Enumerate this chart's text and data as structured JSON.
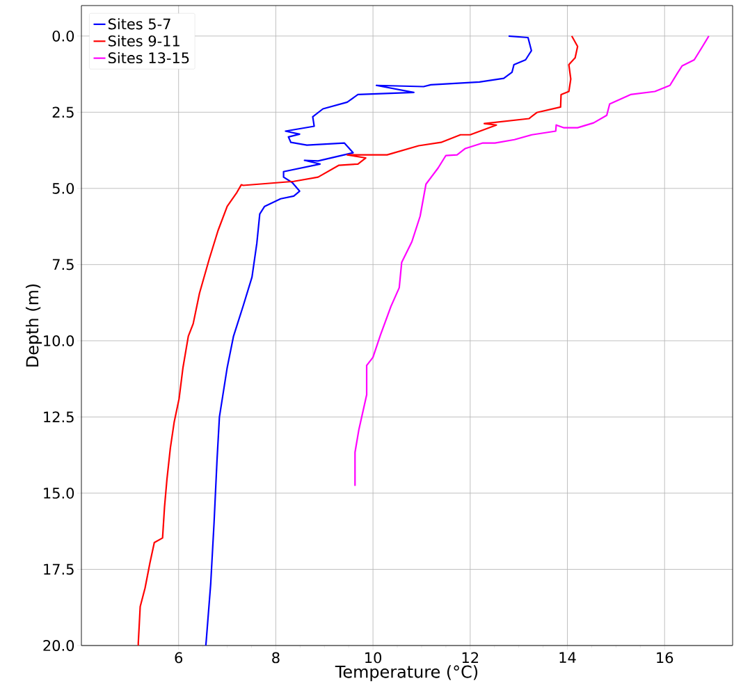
{
  "chart_data": {
    "type": "line",
    "xlabel": "Temperature (°C)",
    "ylabel": "Depth (m)",
    "xlim": [
      4.0,
      17.4
    ],
    "ylim": [
      20,
      -1
    ],
    "xticks": [
      6,
      8,
      10,
      12,
      14,
      16
    ],
    "yticks": [
      {
        "value": 0,
        "label": "0.0"
      },
      2.5,
      {
        "value": 5,
        "label": "5.0"
      },
      7.5,
      {
        "value": 10,
        "label": "10.0"
      },
      12.5,
      {
        "value": 15,
        "label": "15.0"
      },
      17.5,
      {
        "value": 20,
        "label": "20.0"
      }
    ],
    "grid": true,
    "legend": "top left",
    "line_style": "solid",
    "series": [
      {
        "name": "Sites 5-7",
        "color": "#0000ff",
        "x": [
          12.79,
          13.19,
          13.26,
          13.14,
          12.9,
          12.86,
          12.69,
          12.19,
          11.19,
          11.04,
          10.07,
          10.84,
          9.69,
          9.47,
          8.97,
          8.76,
          8.79,
          8.2,
          8.49,
          8.26,
          8.31,
          8.64,
          9.41,
          9.59,
          8.87,
          8.59,
          8.91,
          8.16,
          8.16,
          8.34,
          8.49,
          8.37,
          8.1,
          7.77,
          7.67,
          7.61,
          7.51,
          7.33,
          7.13,
          7.0,
          6.91,
          6.84,
          6.79,
          6.73,
          6.66,
          6.57,
          6.56
        ],
        "values": [
          0.0,
          0.05,
          0.48,
          0.78,
          0.94,
          1.19,
          1.39,
          1.51,
          1.6,
          1.66,
          1.62,
          1.85,
          1.92,
          2.17,
          2.39,
          2.65,
          2.96,
          3.12,
          3.22,
          3.31,
          3.49,
          3.58,
          3.51,
          3.83,
          4.1,
          4.08,
          4.2,
          4.45,
          4.63,
          4.81,
          5.09,
          5.25,
          5.34,
          5.59,
          5.84,
          6.8,
          7.91,
          8.85,
          9.85,
          10.88,
          11.79,
          12.5,
          13.93,
          15.96,
          17.99,
          19.82,
          20.0
        ]
      },
      {
        "name": "Sites 9-11",
        "color": "#ff0000",
        "x": [
          14.09,
          14.21,
          14.16,
          14.03,
          14.07,
          14.03,
          13.87,
          13.86,
          13.37,
          13.21,
          12.29,
          12.54,
          12.0,
          11.8,
          11.4,
          10.94,
          10.29,
          9.47,
          9.85,
          9.69,
          9.3,
          8.87,
          8.37,
          7.33,
          7.29,
          7.2,
          7.0,
          6.81,
          6.63,
          6.43,
          6.3,
          6.2,
          6.09,
          6.01,
          5.91,
          5.83,
          5.76,
          5.71,
          5.67,
          5.5,
          5.41,
          5.31,
          5.21,
          5.17,
          5.17
        ],
        "values": [
          0.0,
          0.34,
          0.71,
          0.94,
          1.41,
          1.82,
          1.92,
          2.33,
          2.51,
          2.71,
          2.87,
          2.92,
          3.24,
          3.24,
          3.49,
          3.6,
          3.9,
          3.9,
          4.0,
          4.2,
          4.24,
          4.63,
          4.77,
          4.9,
          4.88,
          5.13,
          5.59,
          6.39,
          7.32,
          8.44,
          9.44,
          9.85,
          10.88,
          11.9,
          12.66,
          13.52,
          14.55,
          15.46,
          16.47,
          16.62,
          17.29,
          18.11,
          18.72,
          19.93,
          20.0
        ]
      },
      {
        "name": "Sites 13-15",
        "color": "#ff00ff",
        "x": [
          16.91,
          16.77,
          16.61,
          16.36,
          16.26,
          16.11,
          15.8,
          15.3,
          14.87,
          14.81,
          14.54,
          14.21,
          13.93,
          13.77,
          13.76,
          13.27,
          12.91,
          12.51,
          12.26,
          11.9,
          11.73,
          11.5,
          11.34,
          11.09,
          10.97,
          10.8,
          10.59,
          10.54,
          10.37,
          10.16,
          10.0,
          9.87,
          9.87,
          9.71,
          9.63,
          9.63
        ],
        "values": [
          0.0,
          0.37,
          0.78,
          0.98,
          1.23,
          1.62,
          1.82,
          1.92,
          2.23,
          2.6,
          2.85,
          3.01,
          3.01,
          2.92,
          3.12,
          3.24,
          3.4,
          3.51,
          3.51,
          3.69,
          3.9,
          3.92,
          4.33,
          4.86,
          5.91,
          6.75,
          7.43,
          8.26,
          8.87,
          9.78,
          10.54,
          10.81,
          11.77,
          12.91,
          13.66,
          14.76
        ]
      }
    ]
  }
}
